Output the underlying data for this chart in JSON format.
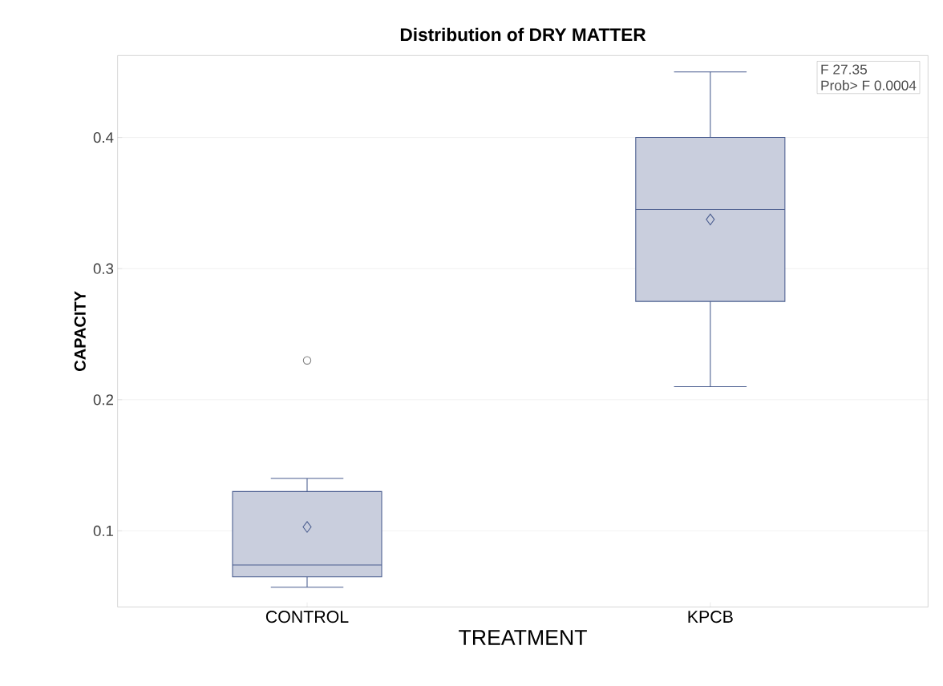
{
  "chart_data": {
    "type": "box",
    "title": "Distribution of DRY MATTER",
    "xlabel": "TREATMENT",
    "ylabel": "CAPACITY",
    "categories": [
      "CONTROL",
      "KPCB"
    ],
    "boxes": [
      {
        "low": 0.057,
        "q1": 0.065,
        "median": 0.074,
        "q3": 0.13,
        "high": 0.14,
        "mean": 0.103,
        "outliers": [
          0.23
        ]
      },
      {
        "low": 0.21,
        "q1": 0.275,
        "median": 0.345,
        "q3": 0.4,
        "high": 0.45,
        "mean": 0.3375
      }
    ],
    "color": "#4a5d8f",
    "ylim": [
      0.042,
      0.4625
    ],
    "yticks": [
      0.1,
      0.2,
      0.3,
      0.4
    ],
    "grid": "y",
    "annotations": [
      "F 27.35",
      "Prob> F 0.0004"
    ]
  }
}
